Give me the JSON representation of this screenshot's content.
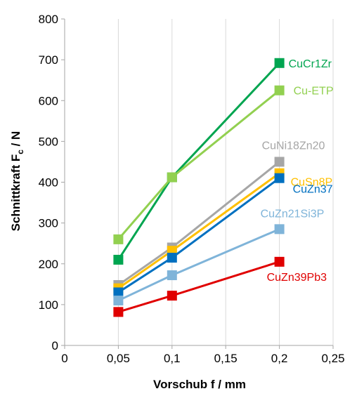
{
  "chart_data": {
    "type": "line",
    "title": "",
    "xlabel": "Vorschub f / mm",
    "ylabel": {
      "main": "Schnittkraft F",
      "subscript": "c",
      "suffix": " / N"
    },
    "xlim": [
      0,
      0.25
    ],
    "ylim": [
      0,
      800
    ],
    "xticks": [
      0,
      0.05,
      0.1,
      0.15,
      0.2,
      0.25
    ],
    "xtick_labels": [
      "0",
      "0,05",
      "0,1",
      "0,15",
      "0,2",
      "0,25"
    ],
    "yticks": [
      0,
      100,
      200,
      300,
      400,
      500,
      600,
      700,
      800
    ],
    "ytick_labels": [
      "0",
      "100",
      "200",
      "300",
      "400",
      "500",
      "600",
      "700",
      "800"
    ],
    "grid": "vertical",
    "legend": "inline labels at line ends",
    "x": [
      0.05,
      0.1,
      0.2
    ],
    "series": [
      {
        "name": "CuCr1Zr",
        "values": [
          210,
          412,
          692
        ],
        "color": "#00a550"
      },
      {
        "name": "Cu-ETP",
        "values": [
          260,
          412,
          625
        ],
        "color": "#92d050"
      },
      {
        "name": "CuNi18Zn20",
        "values": [
          148,
          240,
          450
        ],
        "color": "#a6a6a6"
      },
      {
        "name": "CuSn8P",
        "values": [
          140,
          232,
          422
        ],
        "color": "#ffc000"
      },
      {
        "name": "CuZn37",
        "values": [
          130,
          215,
          410
        ],
        "color": "#0070c0"
      },
      {
        "name": "CuZn21Si3P",
        "values": [
          110,
          172,
          285
        ],
        "color": "#7fb4d9"
      },
      {
        "name": "CuZn39Pb3",
        "values": [
          82,
          122,
          205
        ],
        "color": "#e00000"
      }
    ]
  }
}
